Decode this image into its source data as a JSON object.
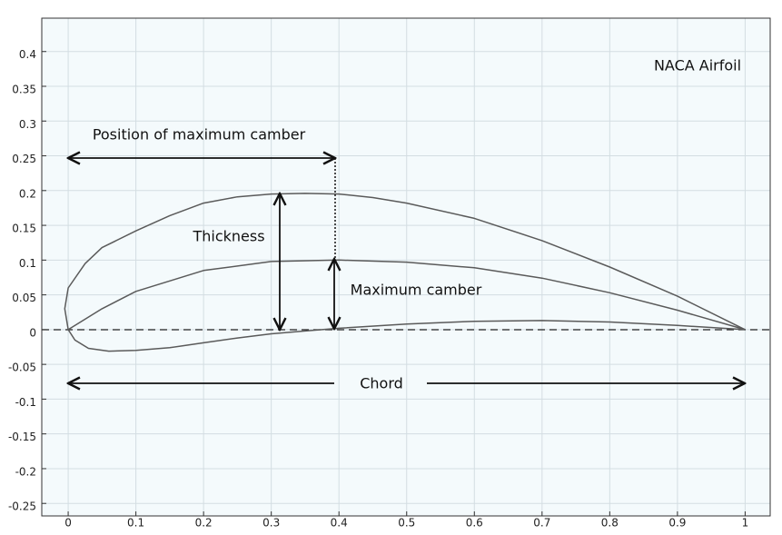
{
  "chart_data": {
    "type": "line",
    "title": "NACA Airfoil",
    "annotations": [
      "Position of maximum camber",
      "Thickness",
      "Maximum camber",
      "Chord"
    ],
    "xlim": [
      -0.039,
      1.037
    ],
    "ylim": [
      -0.268,
      0.448
    ],
    "xticks": [
      0,
      0.1,
      0.2,
      0.3,
      0.4,
      0.5,
      0.6,
      0.7,
      0.8,
      0.9,
      1
    ],
    "yticks": [
      -0.25,
      -0.2,
      -0.15,
      -0.1,
      -0.05,
      0,
      0.05,
      0.1,
      0.15,
      0.2,
      0.25,
      0.3,
      0.35,
      0.4
    ],
    "grid": true,
    "series": [
      {
        "color": "#5a5a5a",
        "x": [
          0,
          -0.005,
          0.0,
          0.025,
          0.05,
          0.1,
          0.15,
          0.2,
          0.25,
          0.3,
          0.35,
          0.4,
          0.45,
          0.5,
          0.6,
          0.7,
          0.8,
          0.9,
          1.0
        ],
        "values": [
          0,
          0.03,
          0.06,
          0.095,
          0.118,
          0.142,
          0.164,
          0.182,
          0.191,
          0.195,
          0.196,
          0.195,
          0.19,
          0.182,
          0.16,
          0.128,
          0.09,
          0.048,
          0
        ]
      },
      {
        "color": "#5a5a5a",
        "x": [
          0,
          0.05,
          0.1,
          0.2,
          0.3,
          0.4,
          0.5,
          0.6,
          0.7,
          0.8,
          0.9,
          1.0
        ],
        "values": [
          0,
          0.03,
          0.055,
          0.085,
          0.098,
          0.1,
          0.097,
          0.089,
          0.074,
          0.053,
          0.028,
          0
        ]
      },
      {
        "color": "#5a5a5a",
        "x": [
          0,
          0.01,
          0.03,
          0.06,
          0.1,
          0.15,
          0.2,
          0.25,
          0.3,
          0.35,
          0.4,
          0.5,
          0.6,
          0.7,
          0.8,
          0.9,
          1.0
        ],
        "values": [
          0,
          -0.015,
          -0.027,
          -0.031,
          -0.03,
          -0.026,
          -0.019,
          -0.012,
          -0.006,
          -0.002,
          0.002,
          0.008,
          0.012,
          0.013,
          0.011,
          0.006,
          0
        ]
      }
    ]
  }
}
